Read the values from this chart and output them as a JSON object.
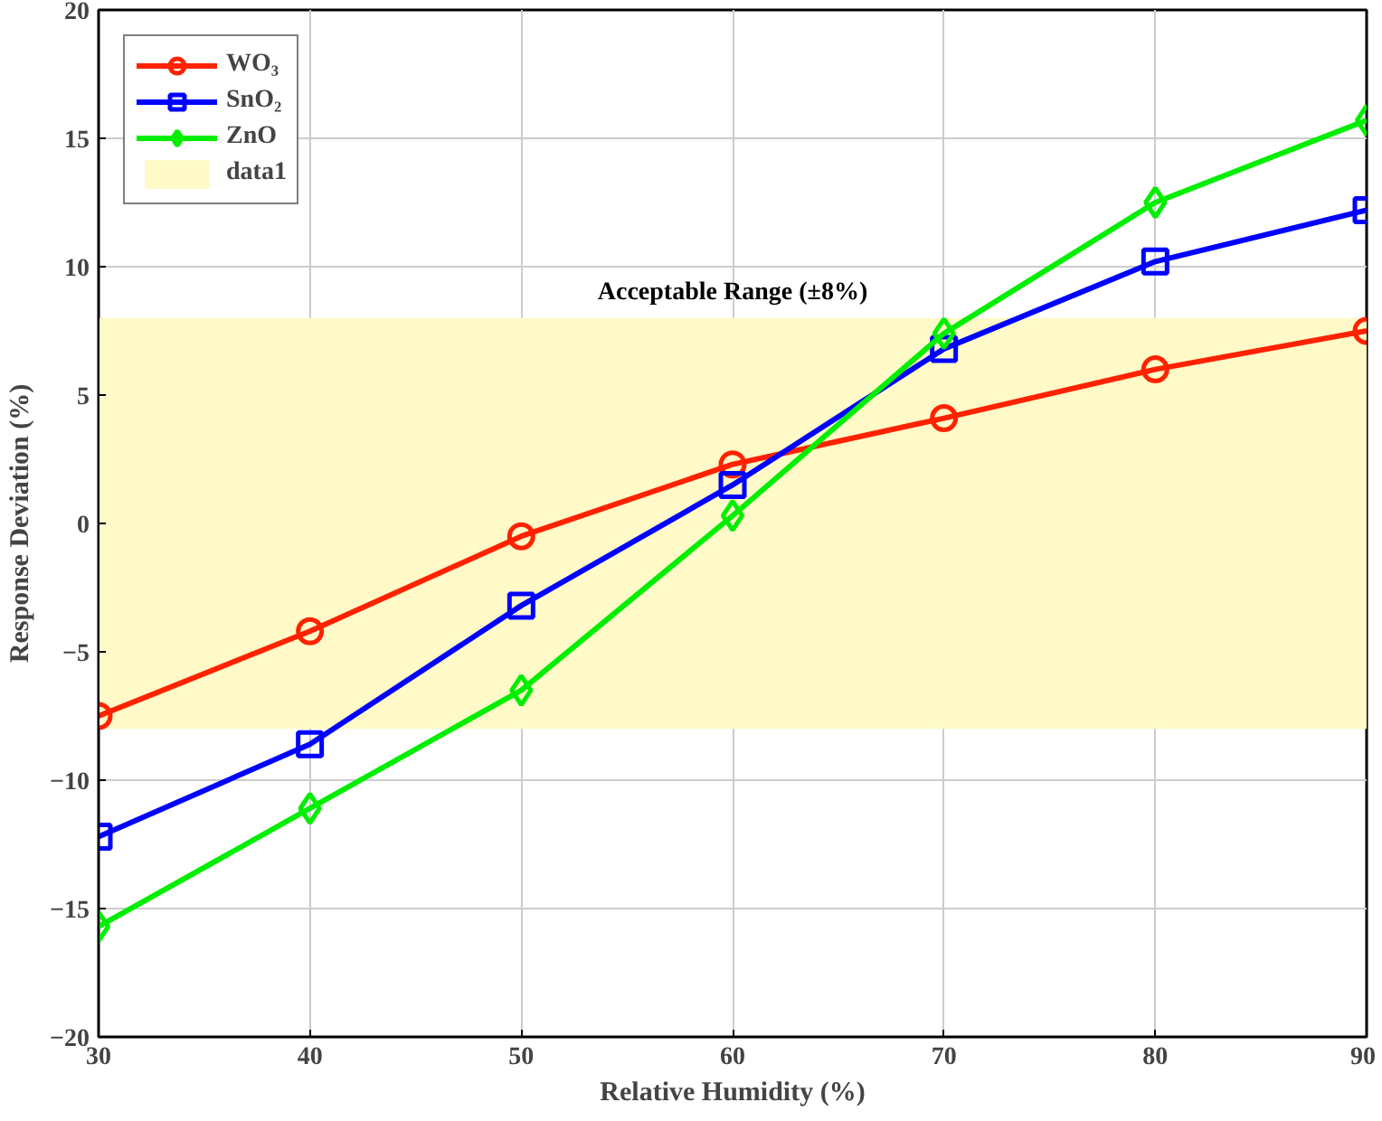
{
  "chart_data": {
    "type": "line",
    "xlabel": "Relative Humidity (%)",
    "ylabel": "Response Deviation (%)",
    "x": [
      30,
      40,
      50,
      60,
      70,
      80,
      90
    ],
    "series": [
      {
        "name": "WO₃",
        "color": "#ff2200",
        "marker": "circle",
        "values": [
          -7.5,
          -4.2,
          -0.5,
          2.3,
          4.1,
          6.0,
          7.5
        ]
      },
      {
        "name": "SnO₂",
        "color": "#0000ff",
        "marker": "square",
        "values": [
          -12.2,
          -8.6,
          -3.2,
          1.5,
          6.8,
          10.2,
          12.2
        ]
      },
      {
        "name": "ZnO",
        "color": "#00ee00",
        "marker": "diamond",
        "values": [
          -15.7,
          -11.1,
          -6.5,
          0.3,
          7.4,
          12.5,
          15.7
        ]
      }
    ],
    "bands": [
      {
        "axis": "y",
        "from": -8,
        "to": 8,
        "label": "data1",
        "color": "#fffac8"
      }
    ],
    "annotations": [
      "Acceptable Range (±8%)"
    ],
    "xlim": [
      30,
      90
    ],
    "ylim": [
      -20,
      20
    ],
    "xticks": [
      30,
      40,
      50,
      60,
      70,
      80,
      90
    ],
    "yticks": [
      -20,
      -15,
      -10,
      -5,
      0,
      5,
      10,
      15,
      20
    ],
    "grid": true,
    "legend": "top left",
    "line_style": "solid"
  }
}
